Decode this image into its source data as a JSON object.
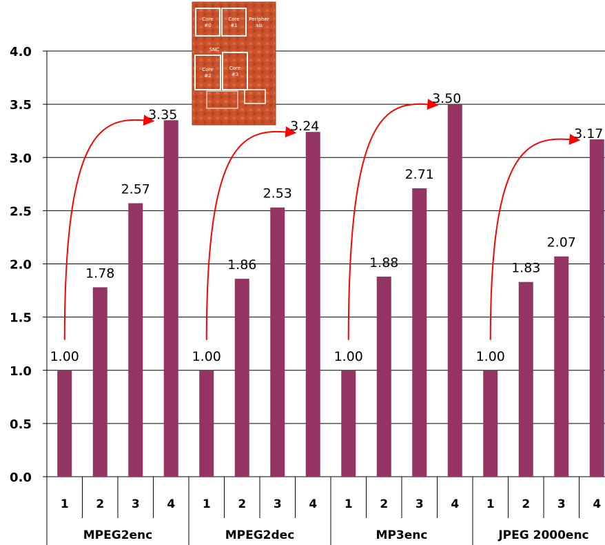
{
  "chart_data": {
    "type": "bar",
    "groups": [
      {
        "name": "MPEG2enc",
        "categories": [
          "1",
          "2",
          "3",
          "4"
        ],
        "values": [
          1.0,
          1.78,
          2.57,
          3.35
        ],
        "labels": [
          "1.00",
          "1.78",
          "2.57",
          "3.35"
        ]
      },
      {
        "name": "MPEG2dec",
        "categories": [
          "1",
          "2",
          "3",
          "4"
        ],
        "values": [
          1.0,
          1.86,
          2.53,
          3.24
        ],
        "labels": [
          "1.00",
          "1.86",
          "2.53",
          "3.24"
        ]
      },
      {
        "name": "MP3enc",
        "categories": [
          "1",
          "2",
          "3",
          "4"
        ],
        "values": [
          1.0,
          1.88,
          2.71,
          3.5
        ],
        "labels": [
          "1.00",
          "1.88",
          "2.71",
          "3.50"
        ]
      },
      {
        "name": "JPEG 2000enc",
        "categories": [
          "1",
          "2",
          "3",
          "4"
        ],
        "values": [
          1.0,
          1.83,
          2.07,
          3.17
        ],
        "labels": [
          "1.00",
          "1.83",
          "2.07",
          "3.17"
        ]
      }
    ],
    "yticks": [
      "0.0",
      "0.5",
      "1.0",
      "1.5",
      "2.0",
      "2.5",
      "3.0",
      "3.5",
      "4.0"
    ],
    "ylim": [
      0,
      4
    ],
    "grid": true,
    "bar_color": "#943462",
    "arrow_color": "#ff0000",
    "inset": {
      "labels": [
        "Core #0",
        "Core #1",
        "Peripher als",
        "SNC",
        "Core #2",
        "Core #3"
      ],
      "color": "#c8502a"
    }
  }
}
